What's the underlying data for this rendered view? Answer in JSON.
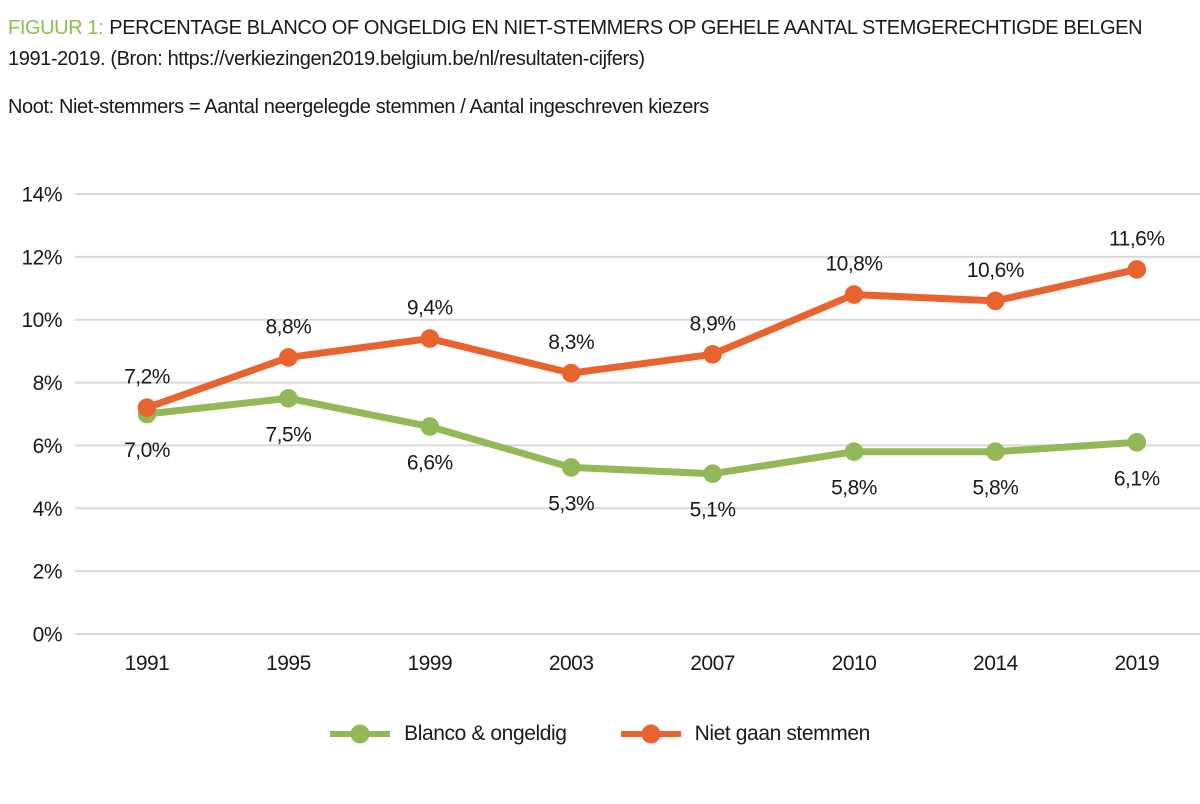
{
  "figure": {
    "label": "FIGUUR 1:",
    "title": "PERCENTAGE BLANCO OF ONGELDIG EN NIET-STEMMERS OP GEHELE AANTAL STEMGERECHTIGDE BELGEN 1991-2019. (Bron: https://verkiezingen2019.belgium.be/nl/resultaten-cijfers)",
    "note": "Noot: Niet-stemmers = Aantal neergelegde stemmen / Aantal ingeschreven kiezers"
  },
  "colors": {
    "accent_green": "#8cbe50",
    "series_green": "#93b857",
    "series_orange": "#e8632e",
    "grid": "#d9d9d9",
    "text": "#1a1a1a"
  },
  "chart_data": {
    "type": "line",
    "categories": [
      "1991",
      "1995",
      "1999",
      "2003",
      "2007",
      "2010",
      "2014",
      "2019"
    ],
    "series": [
      {
        "name": "Blanco & ongeldig",
        "color": "#93b857",
        "values": [
          7.0,
          7.5,
          6.6,
          5.3,
          5.1,
          5.8,
          5.8,
          6.1
        ],
        "labels": [
          "7,0%",
          "7,5%",
          "6,6%",
          "5,3%",
          "5,1%",
          "5,8%",
          "5,8%",
          "6,1%"
        ],
        "label_position": "below"
      },
      {
        "name": "Niet gaan stemmen",
        "color": "#e8632e",
        "values": [
          7.2,
          8.8,
          9.4,
          8.3,
          8.9,
          10.8,
          10.6,
          11.6
        ],
        "labels": [
          "7,2%",
          "8,8%",
          "9,4%",
          "8,3%",
          "8,9%",
          "10,8%",
          "10,6%",
          "11,6%"
        ],
        "label_position": "above"
      }
    ],
    "title": "",
    "xlabel": "",
    "ylabel": "",
    "ylim": [
      0,
      14
    ],
    "ytick_step": 2,
    "yticks": [
      "0%",
      "2%",
      "4%",
      "6%",
      "8%",
      "10%",
      "12%",
      "14%"
    ],
    "grid": true,
    "legend_position": "bottom"
  }
}
